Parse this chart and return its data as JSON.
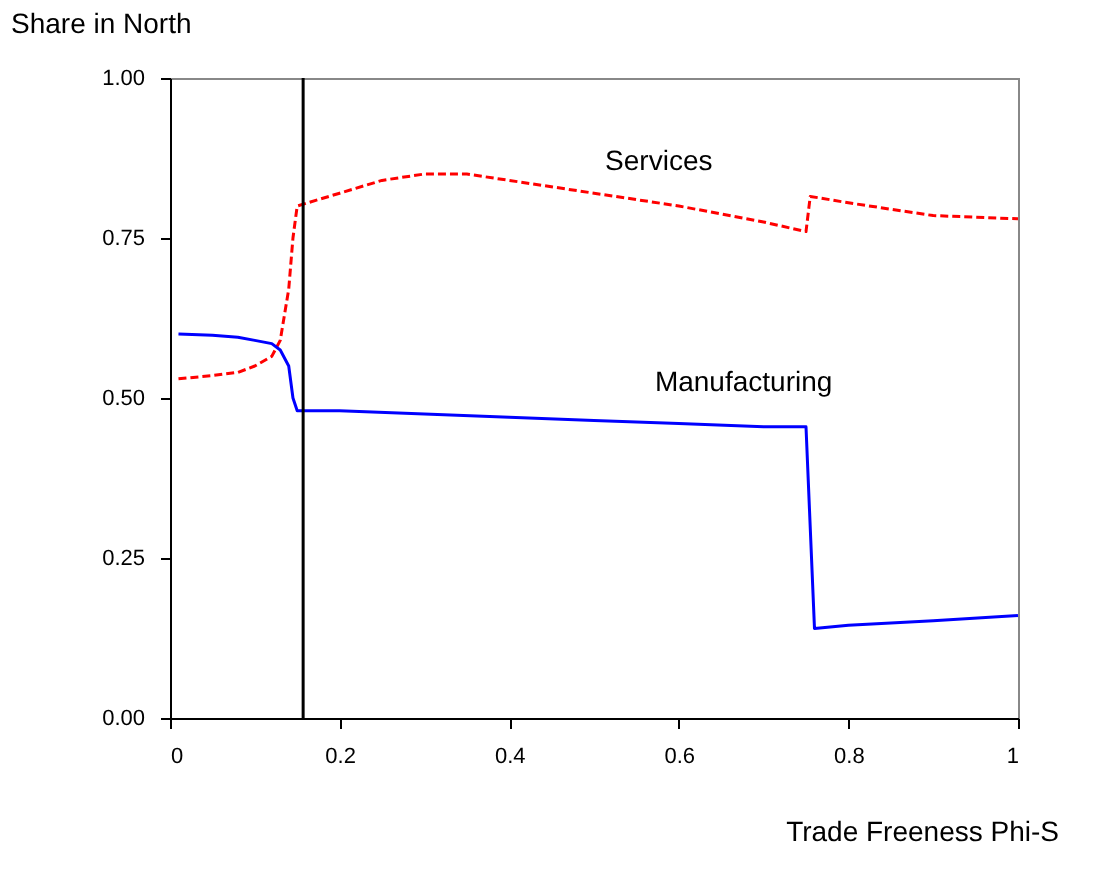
{
  "chart_data": {
    "type": "line",
    "xlabel": "Trade Freeness Phi-S",
    "ylabel": "Share in North",
    "xlim": [
      0,
      1
    ],
    "xticks": [
      0,
      0.2,
      0.4,
      0.6,
      0.8,
      1
    ],
    "ylim": [
      0,
      1
    ],
    "yticks": [
      {
        "value": 0,
        "label": "0.00"
      },
      {
        "value": 0.25,
        "label": "0.25"
      },
      {
        "value": 0.5,
        "label": "0.50"
      },
      {
        "value": 0.75,
        "label": "0.75"
      },
      {
        "value": 1,
        "label": "1.00"
      }
    ],
    "grid": false,
    "marker": "none",
    "ref_lines": [
      {
        "axis": "x",
        "value": 0.157,
        "color": "#000000"
      }
    ],
    "series": [
      {
        "name": "Services",
        "color": "#ff0000",
        "line_style": "dashed",
        "x": [
          0.01,
          0.05,
          0.08,
          0.1,
          0.12,
          0.13,
          0.14,
          0.145,
          0.15,
          0.2,
          0.25,
          0.3,
          0.35,
          0.4,
          0.5,
          0.6,
          0.7,
          0.75,
          0.755,
          0.8,
          0.9,
          1.0
        ],
        "values": [
          0.53,
          0.535,
          0.54,
          0.55,
          0.565,
          0.59,
          0.67,
          0.75,
          0.8,
          0.82,
          0.84,
          0.85,
          0.85,
          0.84,
          0.82,
          0.8,
          0.775,
          0.76,
          0.815,
          0.805,
          0.785,
          0.78
        ]
      },
      {
        "name": "Manufacturing",
        "color": "#0000ff",
        "line_style": "solid",
        "x": [
          0.01,
          0.05,
          0.08,
          0.1,
          0.12,
          0.13,
          0.14,
          0.145,
          0.15,
          0.2,
          0.3,
          0.4,
          0.5,
          0.6,
          0.7,
          0.75,
          0.76,
          0.8,
          0.9,
          1.0
        ],
        "values": [
          0.6,
          0.598,
          0.595,
          0.59,
          0.585,
          0.575,
          0.55,
          0.5,
          0.48,
          0.48,
          0.475,
          0.47,
          0.465,
          0.46,
          0.455,
          0.455,
          0.14,
          0.145,
          0.152,
          0.16
        ]
      }
    ]
  }
}
